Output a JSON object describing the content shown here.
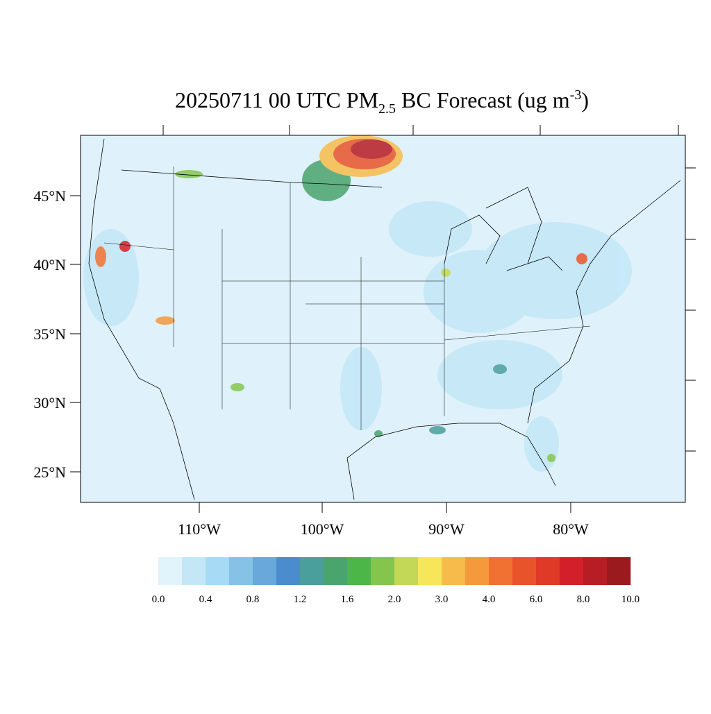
{
  "title": {
    "prefix": "20250711 00 UTC PM",
    "subscript": "2.5",
    "middle": " BC Forecast (ug m",
    "superscript": "-3",
    "suffix": ")"
  },
  "latitude_labels": [
    "45°N",
    "40°N",
    "35°N",
    "30°N",
    "25°N"
  ],
  "longitude_labels": [
    "110°W",
    "100°W",
    "90°W",
    "80°W"
  ],
  "colorbar": {
    "colors": [
      "#e1f3fb",
      "#c3e7f7",
      "#a6daf5",
      "#86c1e6",
      "#68a8da",
      "#4a8cce",
      "#4a9e9c",
      "#4aa46e",
      "#4db648",
      "#85c54d",
      "#c2d856",
      "#f7e55a",
      "#f7bb4b",
      "#f49a3c",
      "#f07132",
      "#e9532b",
      "#de3a27",
      "#d21f2a",
      "#b81c24",
      "#9b1a1d"
    ],
    "labels": [
      "0.0",
      "0.4",
      "0.8",
      "1.2",
      "1.6",
      "2.0",
      "3.0",
      "4.0",
      "6.0",
      "8.0",
      "10.0"
    ]
  }
}
